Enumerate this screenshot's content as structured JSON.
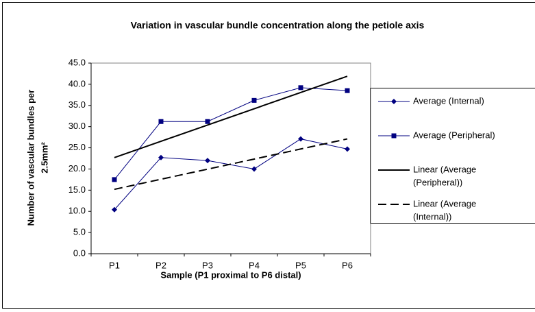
{
  "chart_data": {
    "type": "line",
    "title": "Variation in vascular bundle concentration along the petiole axis",
    "x_label": "Sample (P1 proximal to P6 distal)",
    "y_label": [
      "Number of vascular bundles per",
      "2.5mm²"
    ],
    "categories": [
      "P1",
      "P2",
      "P3",
      "P4",
      "P5",
      "P6"
    ],
    "series": [
      {
        "name": [
          "Average (Internal)"
        ],
        "color": "#000080",
        "style": "solid",
        "marker": "diamond",
        "values": [
          10.4,
          22.7,
          22.0,
          20.0,
          27.1,
          24.7
        ]
      },
      {
        "name": [
          "Average (Peripheral)"
        ],
        "color": "#000080",
        "style": "solid",
        "marker": "square",
        "values": [
          17.5,
          31.2,
          31.2,
          36.2,
          39.2,
          38.5
        ]
      },
      {
        "name": [
          "Linear (Average",
          "(Peripheral))"
        ],
        "color": "#000000",
        "style": "solid",
        "marker": "none",
        "values": [
          22.7,
          26.5,
          30.4,
          34.2,
          38.0,
          41.9
        ]
      },
      {
        "name": [
          "Linear (Average",
          "(Internal))"
        ],
        "color": "#000000",
        "style": "dashed",
        "marker": "none",
        "values": [
          15.2,
          17.6,
          20.0,
          22.3,
          24.7,
          27.1
        ]
      }
    ],
    "ylim": [
      0,
      45
    ],
    "yticks": [
      {
        "value": 0,
        "label": "0.0"
      },
      {
        "value": 5,
        "label": "5.0"
      },
      {
        "value": 10,
        "label": "10.0"
      },
      {
        "value": 15,
        "label": "15.0"
      },
      {
        "value": 20,
        "label": "20.0"
      },
      {
        "value": 25,
        "label": "25.0"
      },
      {
        "value": 30,
        "label": "30.0"
      },
      {
        "value": 35,
        "label": "35.0"
      },
      {
        "value": 40,
        "label": "40.0"
      },
      {
        "value": 45,
        "label": "45.0"
      }
    ],
    "grid": false,
    "legend": "right"
  }
}
